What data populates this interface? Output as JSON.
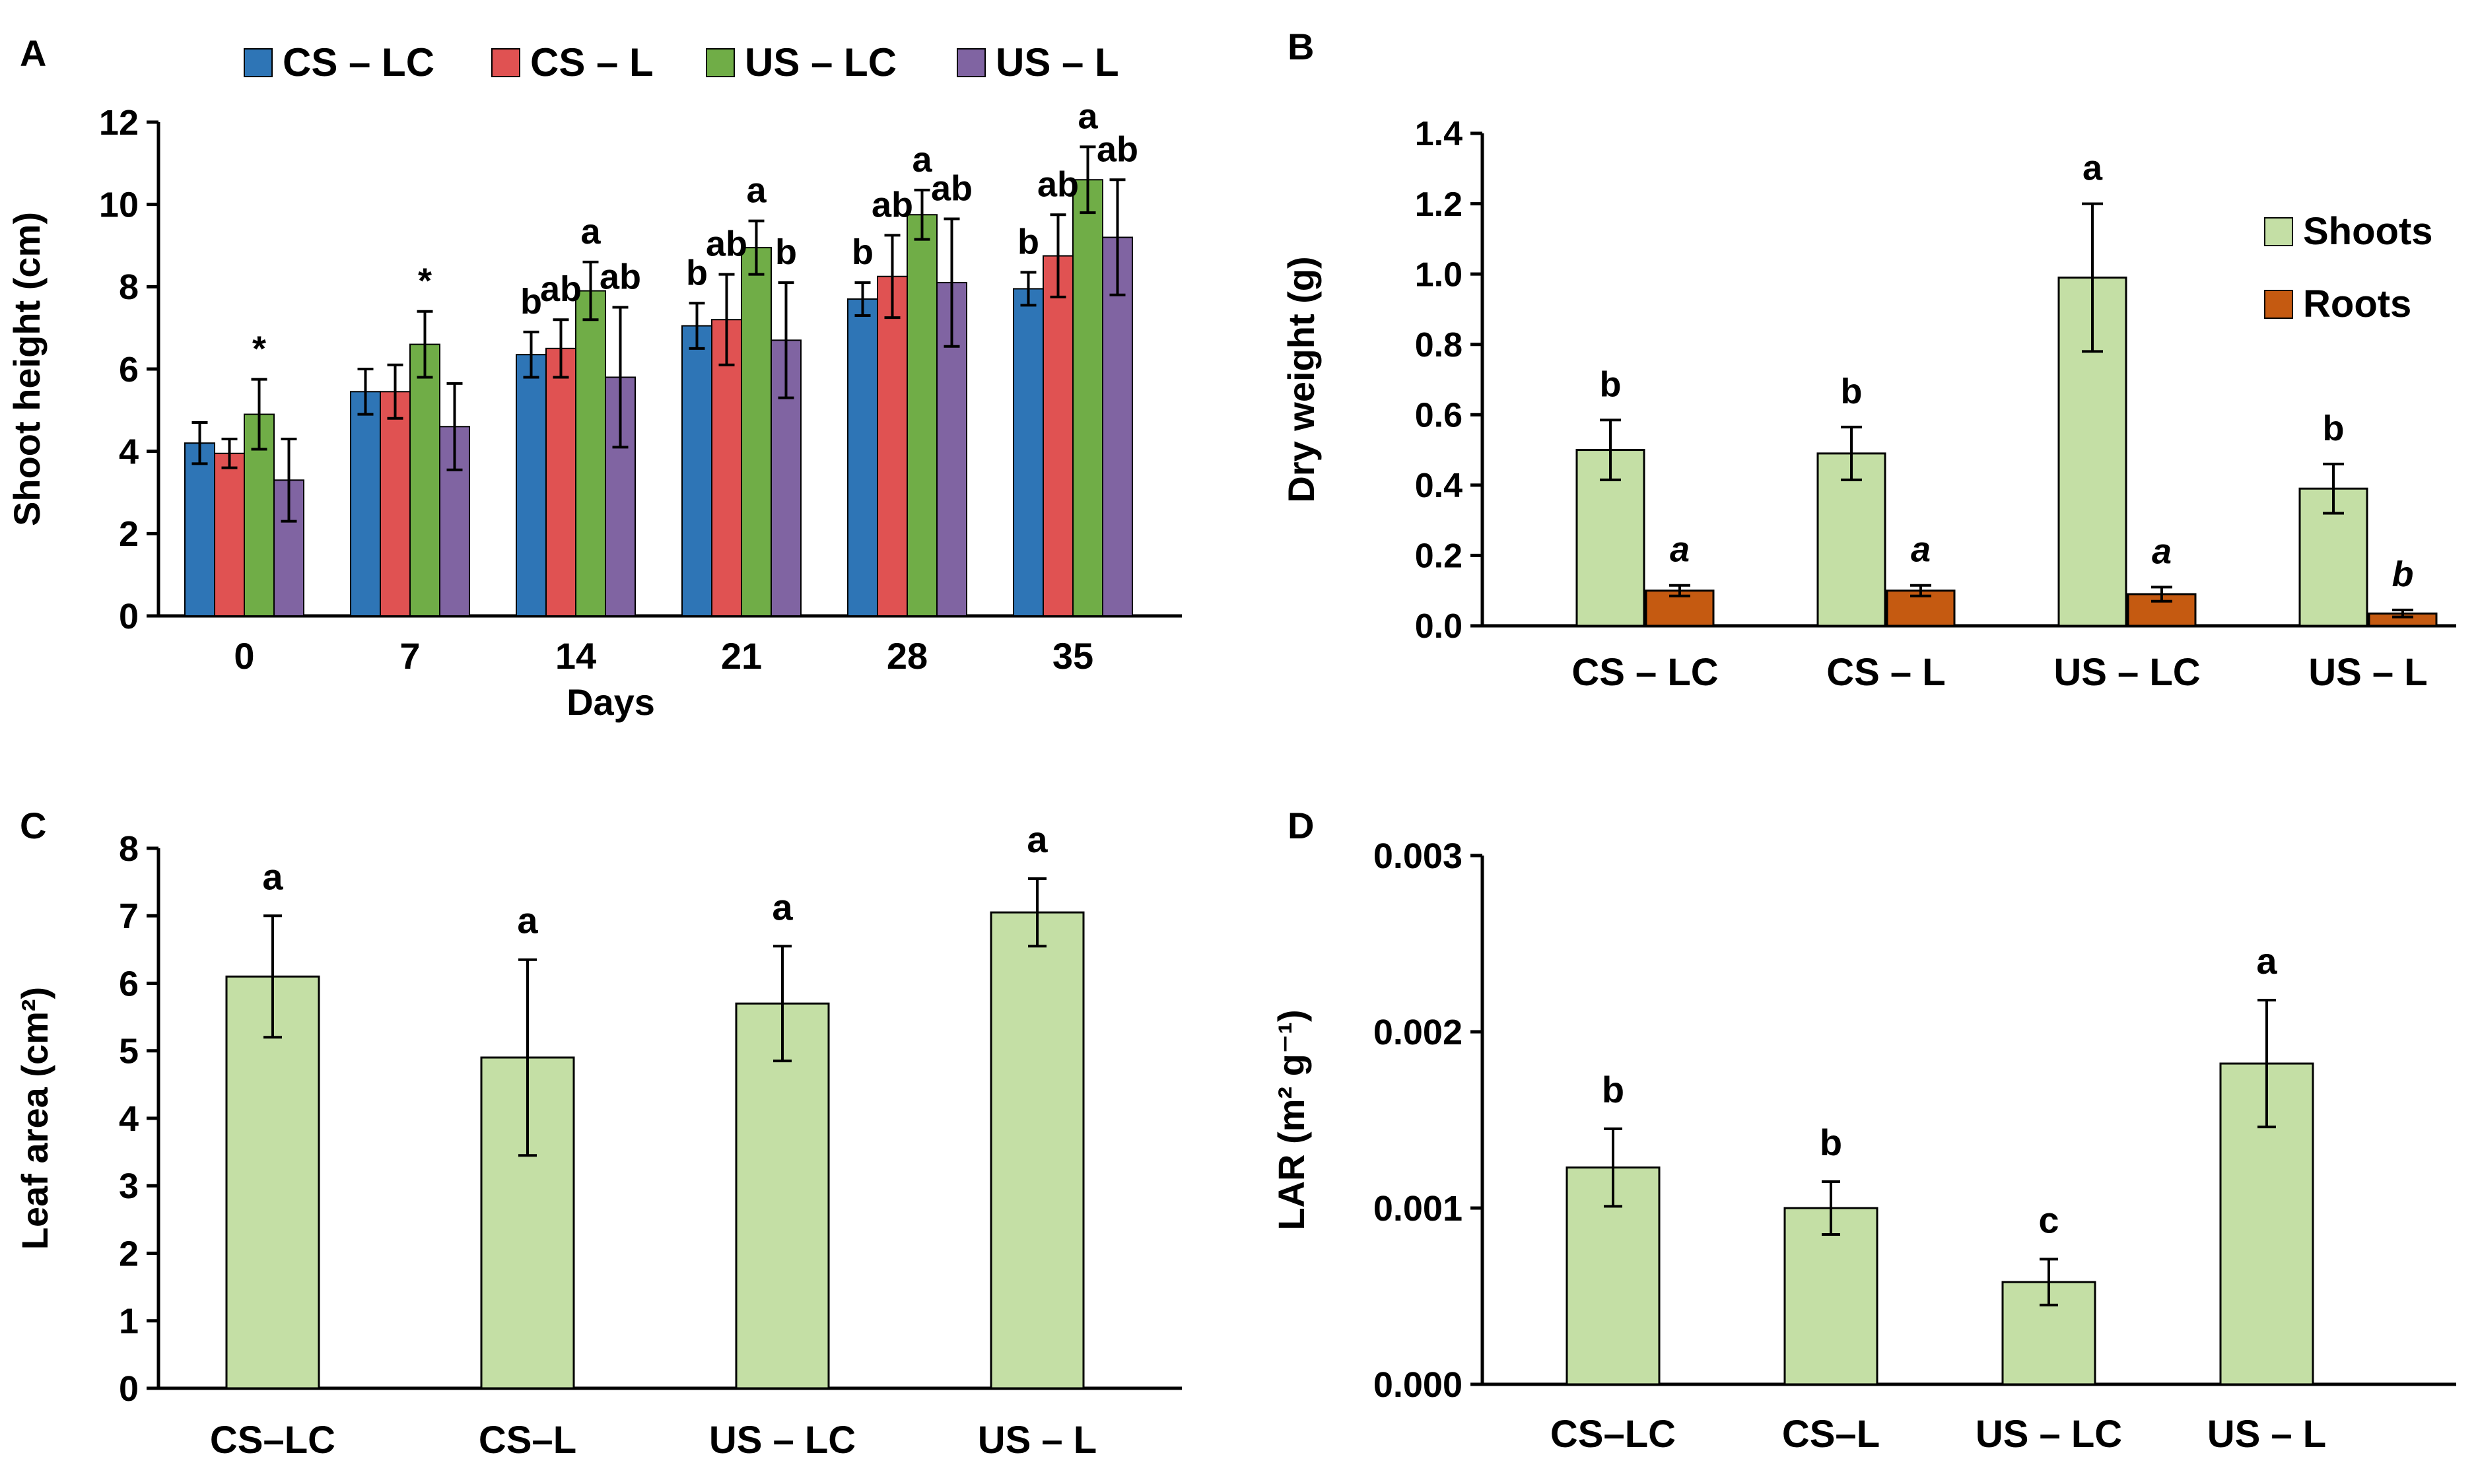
{
  "chart_data": [
    {
      "panel": "A",
      "type": "bar",
      "title": "",
      "xlabel": "Days",
      "ylabel": "Shoot height (cm)",
      "ylim": [
        0,
        12
      ],
      "yticks": [
        "0",
        "2",
        "4",
        "6",
        "8",
        "10",
        "12"
      ],
      "categories": [
        "0",
        "7",
        "14",
        "21",
        "28",
        "35"
      ],
      "legend_position": "top",
      "series": [
        {
          "name": "CS – LC",
          "color": "#2E75B6",
          "values": [
            4.2,
            5.45,
            6.35,
            7.05,
            7.7,
            7.95
          ],
          "errors": [
            0.5,
            0.55,
            0.55,
            0.55,
            0.4,
            0.4
          ]
        },
        {
          "name": "CS – L",
          "color": "#E05252",
          "values": [
            3.95,
            5.45,
            6.5,
            7.2,
            8.25,
            8.75
          ],
          "errors": [
            0.35,
            0.65,
            0.7,
            1.1,
            1.0,
            1.0
          ]
        },
        {
          "name": "US – LC",
          "color": "#70AD47",
          "values": [
            4.9,
            6.6,
            7.9,
            8.95,
            9.75,
            10.6
          ],
          "errors": [
            0.85,
            0.8,
            0.7,
            0.65,
            0.6,
            0.8
          ]
        },
        {
          "name": "US – L",
          "color": "#8064A2",
          "values": [
            3.3,
            4.6,
            5.8,
            6.7,
            8.1,
            9.2
          ],
          "errors": [
            1.0,
            1.05,
            1.7,
            1.4,
            1.55,
            1.4
          ]
        }
      ],
      "annotations": [
        {
          "category": "0",
          "series": "US – LC",
          "text": "*"
        },
        {
          "category": "7",
          "series": "US – LC",
          "text": "*"
        },
        {
          "category": "14",
          "series": "CS – LC",
          "text": "b"
        },
        {
          "category": "14",
          "series": "CS – L",
          "text": "ab"
        },
        {
          "category": "14",
          "series": "US – LC",
          "text": "a"
        },
        {
          "category": "14",
          "series": "US – L",
          "text": "ab"
        },
        {
          "category": "21",
          "series": "CS – LC",
          "text": "b"
        },
        {
          "category": "21",
          "series": "CS – L",
          "text": "ab"
        },
        {
          "category": "21",
          "series": "US – LC",
          "text": "a"
        },
        {
          "category": "21",
          "series": "US – L",
          "text": "b"
        },
        {
          "category": "28",
          "series": "CS – LC",
          "text": "b"
        },
        {
          "category": "28",
          "series": "CS – L",
          "text": "ab"
        },
        {
          "category": "28",
          "series": "US – LC",
          "text": "a"
        },
        {
          "category": "28",
          "series": "US – L",
          "text": "ab"
        },
        {
          "category": "35",
          "series": "CS – LC",
          "text": "b"
        },
        {
          "category": "35",
          "series": "CS – L",
          "text": "ab"
        },
        {
          "category": "35",
          "series": "US – LC",
          "text": "a"
        },
        {
          "category": "35",
          "series": "US – L",
          "text": "ab"
        }
      ]
    },
    {
      "panel": "B",
      "type": "bar",
      "title": "",
      "xlabel": "",
      "ylabel": "Dry weight (g)",
      "ylim": [
        0,
        1.4
      ],
      "yticks": [
        "0.0",
        "0.2",
        "0.4",
        "0.6",
        "0.8",
        "1.0",
        "1.2",
        "1.4"
      ],
      "categories": [
        "CS – LC",
        "CS – L",
        "US – LC",
        "US – L"
      ],
      "legend_position": "right",
      "series": [
        {
          "name": "Shoots",
          "color": "#C4DFA5",
          "values": [
            0.5,
            0.49,
            0.99,
            0.39
          ],
          "errors": [
            0.085,
            0.075,
            0.21,
            0.07
          ],
          "labels": [
            "b",
            "b",
            "a",
            "b"
          ],
          "label_style": "normal"
        },
        {
          "name": "Roots",
          "color": "#C55A11",
          "values": [
            0.1,
            0.1,
            0.09,
            0.035
          ],
          "errors": [
            0.015,
            0.015,
            0.02,
            0.01
          ],
          "labels": [
            "a",
            "a",
            "a",
            "b"
          ],
          "label_style": "italic"
        }
      ]
    },
    {
      "panel": "C",
      "type": "bar",
      "title": "",
      "xlabel": "",
      "ylabel": "Leaf area (cm²)",
      "ylim": [
        0,
        8
      ],
      "yticks": [
        "0",
        "1",
        "2",
        "3",
        "4",
        "5",
        "6",
        "7",
        "8"
      ],
      "categories": [
        "CS–LC",
        "CS–L",
        "US – LC",
        "US – L"
      ],
      "series": [
        {
          "name": "Leaf area",
          "color": "#C4DFA5",
          "values": [
            6.1,
            4.9,
            5.7,
            7.05
          ],
          "errors": [
            0.9,
            1.45,
            0.85,
            0.5
          ],
          "labels": [
            "a",
            "a",
            "a",
            "a"
          ]
        }
      ]
    },
    {
      "panel": "D",
      "type": "bar",
      "title": "",
      "xlabel": "",
      "ylabel": "LAR  (m² g⁻¹)",
      "ylim": [
        0,
        0.003
      ],
      "yticks": [
        "0.000",
        "0.001",
        "0.002",
        "0.003"
      ],
      "categories": [
        "CS–LC",
        "CS–L",
        "US – LC",
        "US – L"
      ],
      "series": [
        {
          "name": "LAR",
          "color": "#C4DFA5",
          "values": [
            0.00123,
            0.001,
            0.00058,
            0.00182
          ],
          "errors": [
            0.00022,
            0.00015,
            0.00013,
            0.00036
          ],
          "labels": [
            "b",
            "b",
            "c",
            "a"
          ]
        }
      ]
    }
  ]
}
